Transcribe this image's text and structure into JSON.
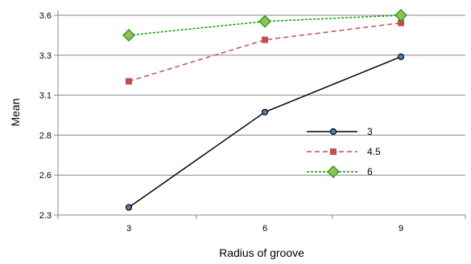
{
  "chart_data": {
    "type": "line",
    "title": "",
    "xlabel": "Radius of groove",
    "ylabel": "Mean",
    "x": [
      3,
      6,
      9
    ],
    "x_tick_labels": [
      "3",
      "6",
      "9"
    ],
    "y_tick_labels": [
      "2.3",
      "2.6",
      "2.8",
      "3.1",
      "3.3",
      "3.6"
    ],
    "ylim": [
      2.3,
      3.6
    ],
    "grid": "horizontal",
    "legend_position": "center-right",
    "series": [
      {
        "name": "3",
        "values": [
          2.35,
          2.97,
          3.33
        ],
        "color": "#000000",
        "marker": "circle",
        "marker_fill": "#4f81bd",
        "dash": "solid"
      },
      {
        "name": "4.5",
        "values": [
          3.17,
          3.44,
          3.55
        ],
        "color": "#c0504d",
        "marker": "square",
        "marker_fill": "#c0504d",
        "dash": "dashed"
      },
      {
        "name": "6",
        "values": [
          3.47,
          3.56,
          3.6
        ],
        "color": "#00a000",
        "marker": "diamond",
        "marker_fill": "#9bbb59",
        "dash": "dotted"
      }
    ]
  }
}
